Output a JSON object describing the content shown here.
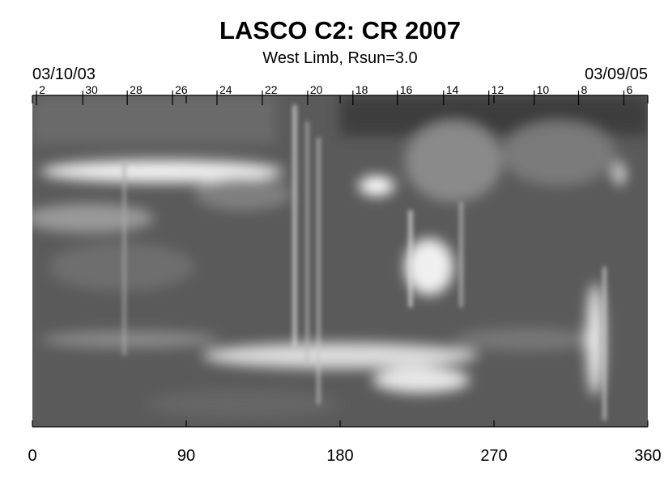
{
  "chart_data": {
    "type": "image",
    "title": "LASCO C2: CR 2007",
    "subtitle": "West Limb, Rsun=3.0",
    "start_date": "03/10/03",
    "end_date": "03/09/05",
    "xlim": [
      0,
      360
    ],
    "xticks": [
      0,
      90,
      180,
      270,
      360
    ],
    "top_tick_labels": [
      "2",
      "30",
      "28",
      "26",
      "24",
      "22",
      "20",
      "18",
      "16",
      "14",
      "12",
      "10",
      "8",
      "6"
    ],
    "top_tick_positions": [
      2.4,
      29.5,
      55.5,
      82,
      108,
      134.5,
      161,
      187.5,
      213.5,
      240.5,
      267,
      293.5,
      319.5,
      346
    ]
  }
}
